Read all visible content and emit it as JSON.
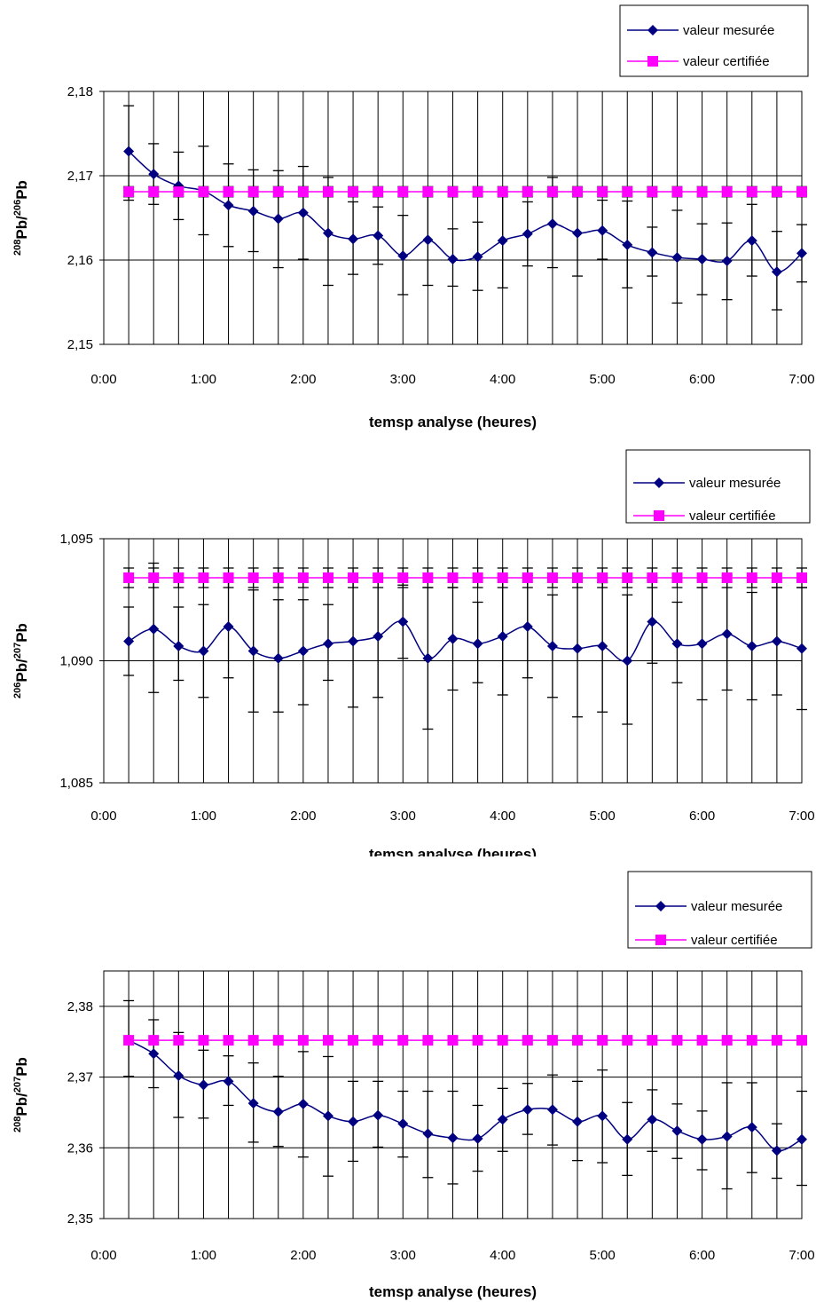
{
  "legend": {
    "measured_label": "valeur mesurée",
    "certified_label": "valeur certifiée"
  },
  "colors": {
    "measured": "#000080",
    "certified": "#FF00FF",
    "grid": "#000000",
    "errorbar": "#000000"
  },
  "chart_data": [
    {
      "type": "line",
      "title": "",
      "xlabel": "temsp analyse (heures)",
      "ylabel_parts": [
        "208",
        "Pb/",
        "206",
        "Pb"
      ],
      "ylim": [
        2.15,
        2.18
      ],
      "yticks": [
        "2,15",
        "2,16",
        "2,17",
        "2,18"
      ],
      "ytick_values": [
        2.15,
        2.16,
        2.17,
        2.18
      ],
      "xlim": [
        "0:00",
        "7:00"
      ],
      "xticks": [
        "0:00",
        "1:00",
        "2:00",
        "3:00",
        "4:00",
        "5:00",
        "6:00",
        "7:00"
      ],
      "x": [
        "0:15",
        "0:30",
        "0:45",
        "1:00",
        "1:15",
        "1:30",
        "1:45",
        "2:00",
        "2:15",
        "2:30",
        "2:45",
        "3:00",
        "3:15",
        "3:30",
        "3:45",
        "4:00",
        "4:15",
        "4:30",
        "4:45",
        "5:00",
        "5:15",
        "5:30",
        "5:45",
        "6:00",
        "6:15",
        "6:30",
        "6:45",
        "7:00"
      ],
      "series": [
        {
          "name": "valeur mesurée",
          "values": [
            2.1729,
            2.1702,
            2.1688,
            2.1682,
            2.1665,
            2.1658,
            2.1649,
            2.1656,
            2.1632,
            2.1625,
            2.1629,
            2.1605,
            2.1624,
            2.1601,
            2.1604,
            2.1623,
            2.1631,
            2.1643,
            2.1632,
            2.1635,
            2.1618,
            2.1609,
            2.1603,
            2.1601,
            2.1599,
            2.1623,
            2.1586,
            2.1608
          ],
          "err_low": [
            2.1671,
            2.1666,
            2.1648,
            2.163,
            2.1616,
            2.161,
            2.1591,
            2.1601,
            2.157,
            2.1583,
            2.1595,
            2.1559,
            2.157,
            2.1569,
            2.1564,
            2.1567,
            2.1593,
            2.1591,
            2.1581,
            2.1601,
            2.1567,
            2.1581,
            2.1549,
            2.1559,
            2.1553,
            2.1581,
            2.1541,
            2.1574
          ],
          "err_high": [
            2.1783,
            2.1738,
            2.1728,
            2.1735,
            2.1714,
            2.1707,
            2.1706,
            2.1711,
            2.1698,
            2.1669,
            2.1663,
            2.1653,
            2.1677,
            2.1637,
            2.1645,
            2.1678,
            2.1669,
            2.1698,
            2.1682,
            2.1671,
            2.167,
            2.1639,
            2.1659,
            2.1643,
            2.1644,
            2.1666,
            2.1634,
            2.1642
          ]
        },
        {
          "name": "valeur certifiée",
          "values": [
            2.1681,
            2.1681,
            2.1681,
            2.1681,
            2.1681,
            2.1681,
            2.1681,
            2.1681,
            2.1681,
            2.1681,
            2.1681,
            2.1681,
            2.1681,
            2.1681,
            2.1681,
            2.1681,
            2.1681,
            2.1681,
            2.1681,
            2.1681,
            2.1681,
            2.1681,
            2.1681,
            2.1681,
            2.1681,
            2.1681,
            2.1681,
            2.1681
          ],
          "err_low": [
            2.1675,
            2.1675,
            2.1675,
            2.1675,
            2.1675,
            2.1675,
            2.1675,
            2.1675,
            2.1675,
            2.1675,
            2.1675,
            2.1675,
            2.1675,
            2.1675,
            2.1675,
            2.1675,
            2.1675,
            2.1675,
            2.1675,
            2.1675,
            2.1675,
            2.1675,
            2.1675,
            2.1675,
            2.1675,
            2.1675,
            2.1675,
            2.1675
          ],
          "err_high": [
            2.1687,
            2.1687,
            2.1687,
            2.1687,
            2.1687,
            2.1687,
            2.1687,
            2.1687,
            2.1687,
            2.1687,
            2.1687,
            2.1687,
            2.1687,
            2.1687,
            2.1687,
            2.1687,
            2.1687,
            2.1687,
            2.1687,
            2.1687,
            2.1687,
            2.1687,
            2.1687,
            2.1687,
            2.1687,
            2.1687,
            2.1687,
            2.1687
          ]
        }
      ],
      "grid": "vertical at each data point, horizontal at y ticks",
      "legend_position": "top-right"
    },
    {
      "type": "line",
      "title": "",
      "xlabel": "temsp analyse (heures)",
      "ylabel_parts": [
        "206",
        "Pb/",
        "207",
        "Pb"
      ],
      "ylim": [
        1.085,
        1.095
      ],
      "yticks": [
        "1,085",
        "1,090",
        "1,095"
      ],
      "ytick_values": [
        1.085,
        1.09,
        1.095
      ],
      "xlim": [
        "0:00",
        "7:00"
      ],
      "xticks": [
        "0:00",
        "1:00",
        "2:00",
        "3:00",
        "4:00",
        "5:00",
        "6:00",
        "7:00"
      ],
      "x": [
        "0:15",
        "0:30",
        "0:45",
        "1:00",
        "1:15",
        "1:30",
        "1:45",
        "2:00",
        "2:15",
        "2:30",
        "2:45",
        "3:00",
        "3:15",
        "3:30",
        "3:45",
        "4:00",
        "4:15",
        "4:30",
        "4:45",
        "5:00",
        "5:15",
        "5:30",
        "5:45",
        "6:00",
        "6:15",
        "6:30",
        "6:45",
        "7:00"
      ],
      "series": [
        {
          "name": "valeur mesurée",
          "values": [
            1.0908,
            1.0913,
            1.0906,
            1.0904,
            1.0914,
            1.0904,
            1.0901,
            1.0904,
            1.0907,
            1.0908,
            1.091,
            1.0916,
            1.0901,
            1.0909,
            1.0907,
            1.091,
            1.0914,
            1.0906,
            1.0905,
            1.0906,
            1.09,
            1.0916,
            1.0907,
            1.0907,
            1.0911,
            1.0906,
            1.0908,
            1.0905
          ],
          "err_low": [
            1.0894,
            1.0887,
            1.0892,
            1.0885,
            1.0893,
            1.0879,
            1.0879,
            1.0882,
            1.0892,
            1.0881,
            1.0885,
            1.0901,
            1.0872,
            1.0888,
            1.0891,
            1.0886,
            1.0893,
            1.0885,
            1.0877,
            1.0879,
            1.0874,
            1.0899,
            1.0891,
            1.0884,
            1.0888,
            1.0884,
            1.0886,
            1.088
          ],
          "err_high": [
            1.0922,
            1.094,
            1.0922,
            1.0923,
            1.0935,
            1.0929,
            1.0925,
            1.0925,
            1.0923,
            1.0935,
            1.0935,
            1.0931,
            1.093,
            1.093,
            1.0924,
            1.0934,
            1.0935,
            1.0927,
            1.0933,
            1.0932,
            1.0927,
            1.0933,
            1.0924,
            1.093,
            1.0935,
            1.0928,
            1.093,
            1.093
          ]
        },
        {
          "name": "valeur certifiée",
          "values": [
            1.0934,
            1.0934,
            1.0934,
            1.0934,
            1.0934,
            1.0934,
            1.0934,
            1.0934,
            1.0934,
            1.0934,
            1.0934,
            1.0934,
            1.0934,
            1.0934,
            1.0934,
            1.0934,
            1.0934,
            1.0934,
            1.0934,
            1.0934,
            1.0934,
            1.0934,
            1.0934,
            1.0934,
            1.0934,
            1.0934,
            1.0934,
            1.0934
          ],
          "err_low": [
            1.093,
            1.093,
            1.093,
            1.093,
            1.093,
            1.093,
            1.093,
            1.093,
            1.093,
            1.093,
            1.093,
            1.093,
            1.093,
            1.093,
            1.093,
            1.093,
            1.093,
            1.093,
            1.093,
            1.093,
            1.093,
            1.093,
            1.093,
            1.093,
            1.093,
            1.093,
            1.093,
            1.093
          ],
          "err_high": [
            1.0938,
            1.0938,
            1.0938,
            1.0938,
            1.0938,
            1.0938,
            1.0938,
            1.0938,
            1.0938,
            1.0938,
            1.0938,
            1.0938,
            1.0938,
            1.0938,
            1.0938,
            1.0938,
            1.0938,
            1.0938,
            1.0938,
            1.0938,
            1.0938,
            1.0938,
            1.0938,
            1.0938,
            1.0938,
            1.0938,
            1.0938,
            1.0938
          ]
        }
      ],
      "grid": "vertical at each data point, horizontal at y ticks",
      "legend_position": "top-right"
    },
    {
      "type": "line",
      "title": "",
      "xlabel": "temsp analyse (heures)",
      "ylabel_parts": [
        "208",
        "Pb/",
        "207",
        "Pb"
      ],
      "ylim": [
        2.35,
        2.385
      ],
      "yticks": [
        "2,35",
        "2,36",
        "2,37",
        "2,38"
      ],
      "ytick_values": [
        2.35,
        2.36,
        2.37,
        2.38
      ],
      "xlim": [
        "0:00",
        "7:00"
      ],
      "xticks": [
        "0:00",
        "1:00",
        "2:00",
        "3:00",
        "4:00",
        "5:00",
        "6:00",
        "7:00"
      ],
      "x": [
        "0:15",
        "0:30",
        "0:45",
        "1:00",
        "1:15",
        "1:30",
        "1:45",
        "2:00",
        "2:15",
        "2:30",
        "2:45",
        "3:00",
        "3:15",
        "3:30",
        "3:45",
        "4:00",
        "4:15",
        "4:30",
        "4:45",
        "5:00",
        "5:15",
        "5:30",
        "5:45",
        "6:00",
        "6:15",
        "6:30",
        "6:45",
        "7:00"
      ],
      "series": [
        {
          "name": "valeur mesurée",
          "values": [
            2.3752,
            2.3733,
            2.3702,
            2.3689,
            2.3694,
            2.3663,
            2.3651,
            2.3662,
            2.3645,
            2.3637,
            2.3646,
            2.3634,
            2.362,
            2.3614,
            2.3613,
            2.364,
            2.3654,
            2.3654,
            2.3637,
            2.3645,
            2.3612,
            2.364,
            2.3624,
            2.3612,
            2.3616,
            2.3629,
            2.3596,
            2.3612
          ],
          "err_low": [
            2.3701,
            2.3685,
            2.3643,
            2.3642,
            2.366,
            2.3608,
            2.3602,
            2.3587,
            2.356,
            2.3581,
            2.3601,
            2.3587,
            2.3558,
            2.3549,
            2.3567,
            2.3595,
            2.3619,
            2.3604,
            2.3582,
            2.3579,
            2.3561,
            2.3595,
            2.3585,
            2.3569,
            2.3542,
            2.3565,
            2.3557,
            2.3547
          ],
          "err_high": [
            2.3808,
            2.3781,
            2.3763,
            2.3738,
            2.373,
            2.372,
            2.3701,
            2.3736,
            2.3729,
            2.3694,
            2.3694,
            2.368,
            2.368,
            2.368,
            2.366,
            2.3684,
            2.3691,
            2.3703,
            2.3694,
            2.371,
            2.3664,
            2.3682,
            2.3662,
            2.3652,
            2.3692,
            2.3692,
            2.3634,
            2.368
          ]
        },
        {
          "name": "valeur certifiée",
          "values": [
            2.3752,
            2.3752,
            2.3752,
            2.3752,
            2.3752,
            2.3752,
            2.3752,
            2.3752,
            2.3752,
            2.3752,
            2.3752,
            2.3752,
            2.3752,
            2.3752,
            2.3752,
            2.3752,
            2.3752,
            2.3752,
            2.3752,
            2.3752,
            2.3752,
            2.3752,
            2.3752,
            2.3752,
            2.3752,
            2.3752,
            2.3752,
            2.3752
          ]
        }
      ],
      "grid": "vertical at each data point, horizontal at y ticks",
      "legend_position": "top-right"
    }
  ]
}
